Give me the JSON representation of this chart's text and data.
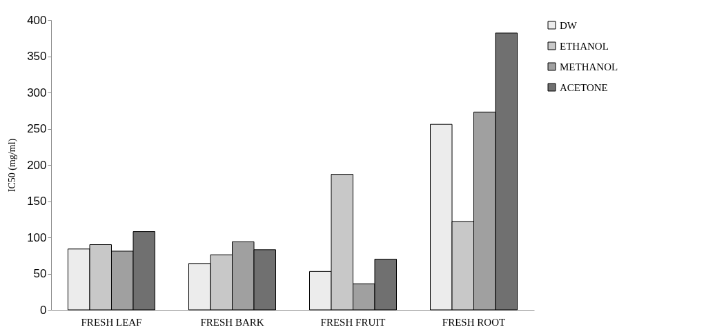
{
  "chart_data": {
    "type": "bar",
    "ylabel": "IC50 (mg/ml)",
    "categories": [
      "FRESH LEAF",
      "FRESH BARK",
      "FRESH FRUIT",
      "FRESH ROOT"
    ],
    "series": [
      {
        "name": "DW",
        "color": "#ececec",
        "values": [
          84,
          64,
          53,
          256
        ]
      },
      {
        "name": "ETHANOL",
        "color": "#c8c8c8",
        "values": [
          90,
          76,
          187,
          122
        ]
      },
      {
        "name": "METHANOL",
        "color": "#a0a0a0",
        "values": [
          81,
          94,
          36,
          273
        ]
      },
      {
        "name": "ACETONE",
        "color": "#707070",
        "values": [
          108,
          83,
          70,
          382
        ]
      }
    ],
    "ylim": [
      0,
      400
    ],
    "yticks": [
      0,
      50,
      100,
      150,
      200,
      250,
      300,
      350,
      400
    ],
    "grid": false,
    "legend": "right"
  }
}
